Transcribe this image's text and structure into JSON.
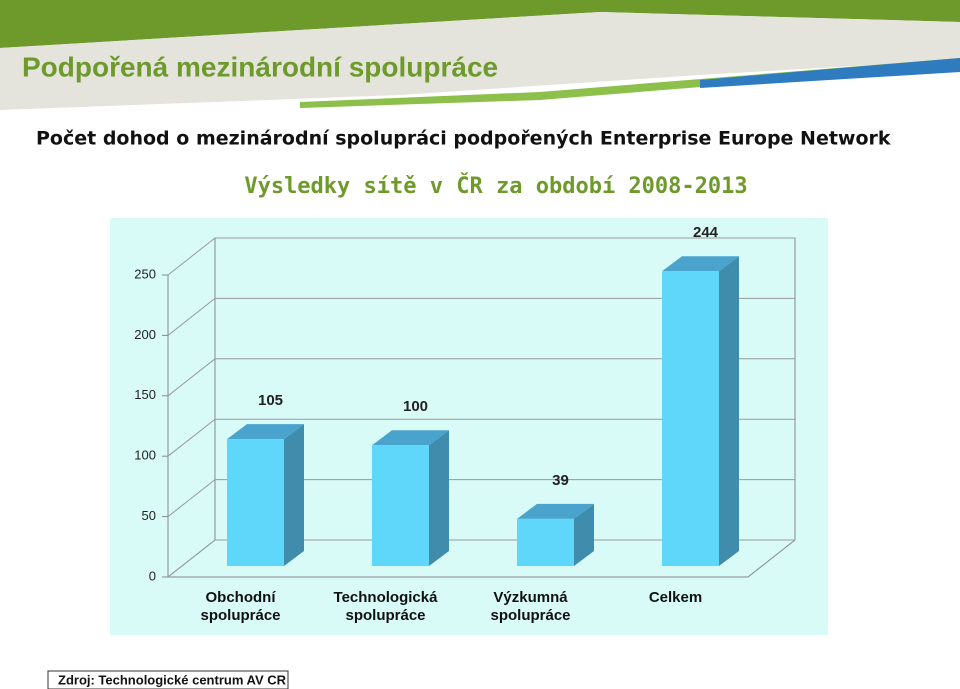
{
  "slide": {
    "title": "Podpořená mezinárodní spolupráce",
    "subtitle": "Počet dohod o mezinárodní spolupráci podpořených Enterprise Europe Network",
    "source": "Zdroj: Technologické centrum AV CR"
  },
  "chart_data": {
    "type": "bar3d",
    "title": "Výsledky sítě v ČR za období 2008-2013",
    "categories": [
      "Obchodní spolupráce",
      "Technologická spolupráce",
      "Výzkumná spolupráce",
      "Celkem"
    ],
    "values": [
      105,
      100,
      39,
      244
    ],
    "color": "#5fd7fb",
    "ylim": [
      0,
      250
    ],
    "yticks": [
      0,
      50,
      100,
      150,
      200,
      250
    ],
    "grid": true
  }
}
